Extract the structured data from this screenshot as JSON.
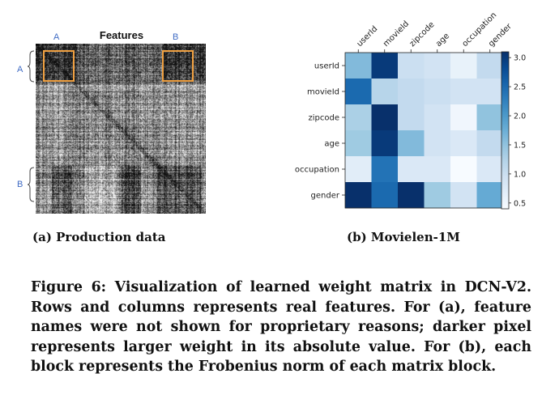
{
  "panel_a": {
    "title": "Features",
    "col_label_a": "A",
    "col_label_b": "B",
    "row_label_a": "A",
    "row_label_b": "B",
    "caption": "(a) Production data",
    "highlight_color": "#f0a040",
    "label_color": "#3f6bc4"
  },
  "panel_b": {
    "caption": "(b) Movielen-1M"
  },
  "chart_data": {
    "type": "heatmap",
    "title": "",
    "xlabel": "",
    "ylabel": "",
    "x_categories": [
      "userId",
      "movieId",
      "zipcode",
      "age",
      "occupation",
      "gender"
    ],
    "y_categories": [
      "userId",
      "movieId",
      "zipcode",
      "age",
      "occupation",
      "gender"
    ],
    "values": [
      [
        1.6,
        3.0,
        1.0,
        0.9,
        0.6,
        1.1
      ],
      [
        2.5,
        1.2,
        1.1,
        1.0,
        0.9,
        0.9
      ],
      [
        1.3,
        3.2,
        1.1,
        0.9,
        0.5,
        1.5
      ],
      [
        1.4,
        3.0,
        1.6,
        0.9,
        0.8,
        1.1
      ],
      [
        0.7,
        2.4,
        0.8,
        0.8,
        0.4,
        0.8
      ],
      [
        3.2,
        2.5,
        3.3,
        1.4,
        0.9,
        1.8
      ]
    ],
    "colorbar": {
      "range": [
        0.4,
        3.1
      ],
      "ticks": [
        "0.5",
        "1.0",
        "1.5",
        "2.0",
        "2.5",
        "3.0"
      ],
      "colormap": "Blues"
    }
  },
  "figure_caption": "Figure 6: Visualization of learned weight matrix in DCN-V2. Rows and columns represents real features. For (a), feature names were not shown for proprietary reasons; darker pixel represents larger weight in its absolute value. For (b), each block represents the Frobenius norm of each matrix block."
}
